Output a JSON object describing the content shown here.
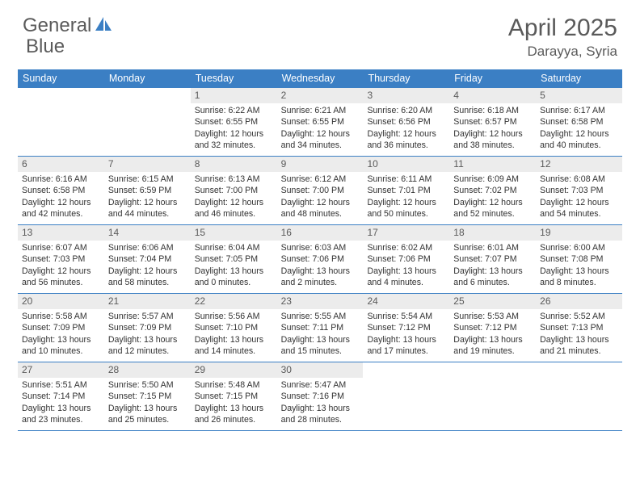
{
  "logo": {
    "textA": "General",
    "textB": "Blue"
  },
  "title": "April 2025",
  "location": "Darayya, Syria",
  "colors": {
    "header_bg": "#3b7fc4",
    "header_text": "#ffffff",
    "daynum_bg": "#ececec",
    "daynum_text": "#5a5a5a",
    "body_text": "#323232",
    "title_text": "#5a5a5a",
    "divider": "#3b7fc4"
  },
  "weekdays": [
    "Sunday",
    "Monday",
    "Tuesday",
    "Wednesday",
    "Thursday",
    "Friday",
    "Saturday"
  ],
  "weeks": [
    [
      {
        "empty": true
      },
      {
        "empty": true
      },
      {
        "num": "1",
        "sunrise": "6:22 AM",
        "sunset": "6:55 PM",
        "dl_h": "12",
        "dl_m": "32"
      },
      {
        "num": "2",
        "sunrise": "6:21 AM",
        "sunset": "6:55 PM",
        "dl_h": "12",
        "dl_m": "34"
      },
      {
        "num": "3",
        "sunrise": "6:20 AM",
        "sunset": "6:56 PM",
        "dl_h": "12",
        "dl_m": "36"
      },
      {
        "num": "4",
        "sunrise": "6:18 AM",
        "sunset": "6:57 PM",
        "dl_h": "12",
        "dl_m": "38"
      },
      {
        "num": "5",
        "sunrise": "6:17 AM",
        "sunset": "6:58 PM",
        "dl_h": "12",
        "dl_m": "40"
      }
    ],
    [
      {
        "num": "6",
        "sunrise": "6:16 AM",
        "sunset": "6:58 PM",
        "dl_h": "12",
        "dl_m": "42"
      },
      {
        "num": "7",
        "sunrise": "6:15 AM",
        "sunset": "6:59 PM",
        "dl_h": "12",
        "dl_m": "44"
      },
      {
        "num": "8",
        "sunrise": "6:13 AM",
        "sunset": "7:00 PM",
        "dl_h": "12",
        "dl_m": "46"
      },
      {
        "num": "9",
        "sunrise": "6:12 AM",
        "sunset": "7:00 PM",
        "dl_h": "12",
        "dl_m": "48"
      },
      {
        "num": "10",
        "sunrise": "6:11 AM",
        "sunset": "7:01 PM",
        "dl_h": "12",
        "dl_m": "50"
      },
      {
        "num": "11",
        "sunrise": "6:09 AM",
        "sunset": "7:02 PM",
        "dl_h": "12",
        "dl_m": "52"
      },
      {
        "num": "12",
        "sunrise": "6:08 AM",
        "sunset": "7:03 PM",
        "dl_h": "12",
        "dl_m": "54"
      }
    ],
    [
      {
        "num": "13",
        "sunrise": "6:07 AM",
        "sunset": "7:03 PM",
        "dl_h": "12",
        "dl_m": "56"
      },
      {
        "num": "14",
        "sunrise": "6:06 AM",
        "sunset": "7:04 PM",
        "dl_h": "12",
        "dl_m": "58"
      },
      {
        "num": "15",
        "sunrise": "6:04 AM",
        "sunset": "7:05 PM",
        "dl_h": "13",
        "dl_m": "0"
      },
      {
        "num": "16",
        "sunrise": "6:03 AM",
        "sunset": "7:06 PM",
        "dl_h": "13",
        "dl_m": "2"
      },
      {
        "num": "17",
        "sunrise": "6:02 AM",
        "sunset": "7:06 PM",
        "dl_h": "13",
        "dl_m": "4"
      },
      {
        "num": "18",
        "sunrise": "6:01 AM",
        "sunset": "7:07 PM",
        "dl_h": "13",
        "dl_m": "6"
      },
      {
        "num": "19",
        "sunrise": "6:00 AM",
        "sunset": "7:08 PM",
        "dl_h": "13",
        "dl_m": "8"
      }
    ],
    [
      {
        "num": "20",
        "sunrise": "5:58 AM",
        "sunset": "7:09 PM",
        "dl_h": "13",
        "dl_m": "10"
      },
      {
        "num": "21",
        "sunrise": "5:57 AM",
        "sunset": "7:09 PM",
        "dl_h": "13",
        "dl_m": "12"
      },
      {
        "num": "22",
        "sunrise": "5:56 AM",
        "sunset": "7:10 PM",
        "dl_h": "13",
        "dl_m": "14"
      },
      {
        "num": "23",
        "sunrise": "5:55 AM",
        "sunset": "7:11 PM",
        "dl_h": "13",
        "dl_m": "15"
      },
      {
        "num": "24",
        "sunrise": "5:54 AM",
        "sunset": "7:12 PM",
        "dl_h": "13",
        "dl_m": "17"
      },
      {
        "num": "25",
        "sunrise": "5:53 AM",
        "sunset": "7:12 PM",
        "dl_h": "13",
        "dl_m": "19"
      },
      {
        "num": "26",
        "sunrise": "5:52 AM",
        "sunset": "7:13 PM",
        "dl_h": "13",
        "dl_m": "21"
      }
    ],
    [
      {
        "num": "27",
        "sunrise": "5:51 AM",
        "sunset": "7:14 PM",
        "dl_h": "13",
        "dl_m": "23"
      },
      {
        "num": "28",
        "sunrise": "5:50 AM",
        "sunset": "7:15 PM",
        "dl_h": "13",
        "dl_m": "25"
      },
      {
        "num": "29",
        "sunrise": "5:48 AM",
        "sunset": "7:15 PM",
        "dl_h": "13",
        "dl_m": "26"
      },
      {
        "num": "30",
        "sunrise": "5:47 AM",
        "sunset": "7:16 PM",
        "dl_h": "13",
        "dl_m": "28"
      },
      {
        "empty": true
      },
      {
        "empty": true
      },
      {
        "empty": true
      }
    ]
  ]
}
